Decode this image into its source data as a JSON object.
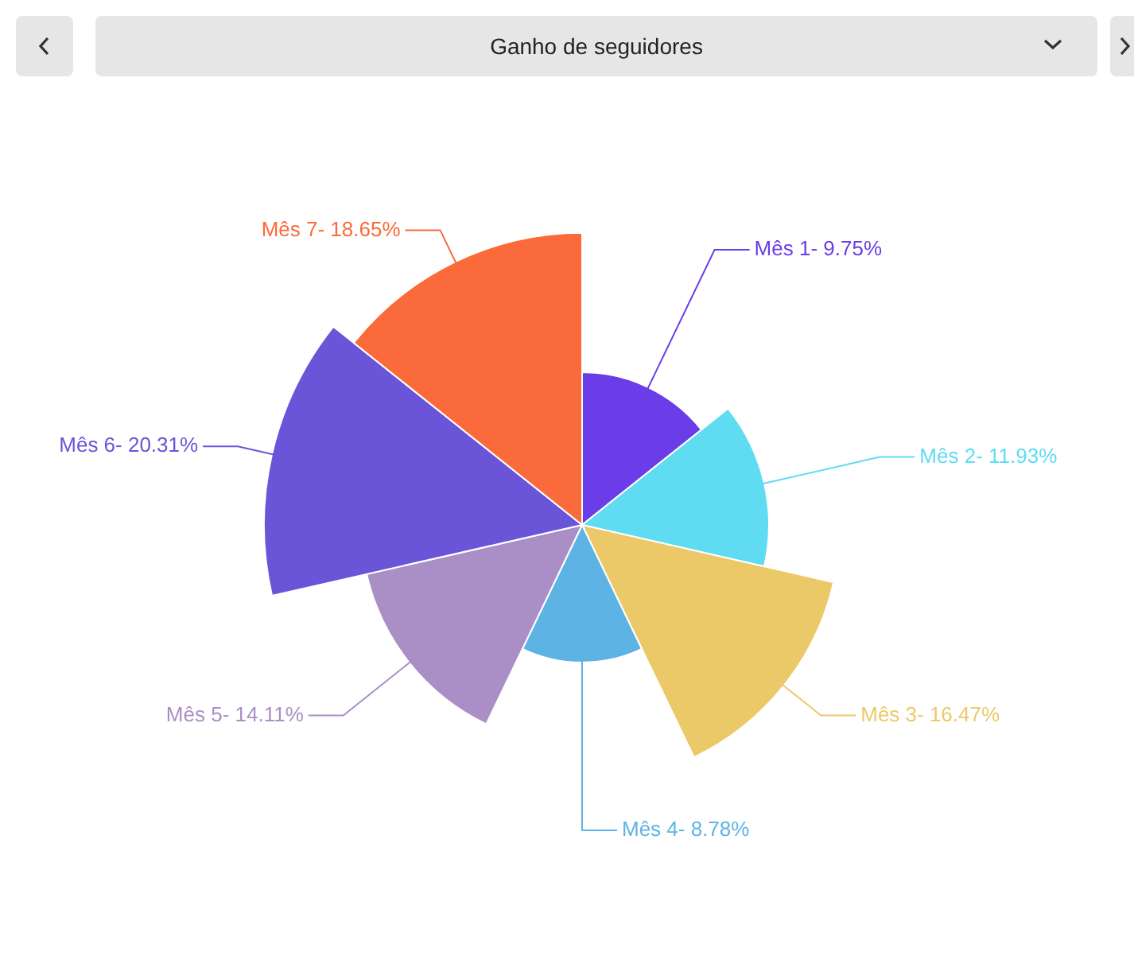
{
  "chart_data": {
    "type": "other",
    "title": "Ganho de seguidores",
    "categories": [
      "Mês 1-",
      "Mês 2-",
      "Mês 3-",
      "Mês 4-",
      "Mês 5-",
      "Mês 6-",
      "Mês 7-"
    ],
    "values": [
      9.75,
      11.93,
      16.47,
      8.78,
      14.11,
      20.31,
      18.65
    ],
    "value_labels": [
      "9.75%",
      "11.93%",
      "16.47%",
      "8.78%",
      "14.11%",
      "20.31%",
      "18.65%"
    ],
    "colors": [
      "#6a3de8",
      "#5fdcf2",
      "#ecc968",
      "#5db4e4",
      "#a98fc6",
      "#6a55d8",
      "#fb6a3a"
    ],
    "legend": false
  }
}
